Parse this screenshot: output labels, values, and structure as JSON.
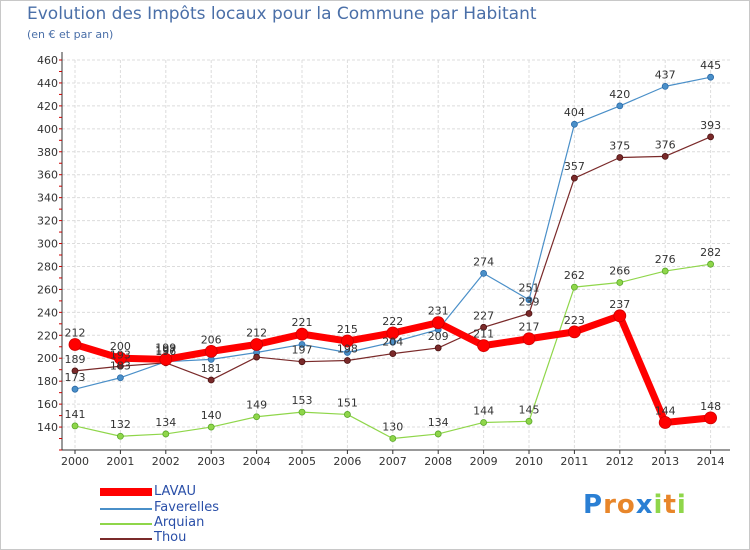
{
  "chart_data": {
    "type": "line",
    "title": "Evolution des Impôts locaux pour la Commune par Habitant",
    "subtitle": "(en € et par an)",
    "x": [
      "2000",
      "2001",
      "2002",
      "2003",
      "2004",
      "2005",
      "2006",
      "2007",
      "2008",
      "2009",
      "2010",
      "2011",
      "2012",
      "2013",
      "2014"
    ],
    "ylim": [
      120,
      460
    ],
    "yticks": [
      140,
      160,
      180,
      200,
      220,
      240,
      260,
      280,
      300,
      320,
      340,
      360,
      380,
      400,
      420,
      440,
      460
    ],
    "grid": true,
    "legend_position": "bottom-left",
    "series": [
      {
        "name": "LAVAU",
        "color": "#ff0000",
        "values": [
          212,
          200,
          199,
          206,
          212,
          221,
          215,
          222,
          231,
          211,
          217,
          223,
          237,
          144,
          148
        ]
      },
      {
        "name": "Faverelles",
        "color": "#4a8fc8",
        "values": [
          173,
          183,
          197,
          199,
          205,
          212,
          205,
          214,
          225,
          274,
          251,
          404,
          420,
          437,
          445
        ],
        "labels": [
          173,
          183,
          197,
          null,
          null,
          null,
          null,
          null,
          null,
          274,
          251,
          404,
          420,
          437,
          445
        ]
      },
      {
        "name": "Arquian",
        "color": "#8fd64a",
        "values": [
          141,
          132,
          134,
          140,
          149,
          153,
          151,
          130,
          134,
          144,
          145,
          262,
          266,
          276,
          282
        ]
      },
      {
        "name": "Thou",
        "color": "#7a2a2a",
        "values": [
          189,
          193,
          196,
          181,
          201,
          197,
          198,
          204,
          209,
          227,
          239,
          357,
          375,
          376,
          393
        ],
        "labels": [
          189,
          193,
          196,
          181,
          null,
          197,
          198,
          204,
          209,
          227,
          239,
          357,
          375,
          376,
          393
        ]
      }
    ]
  },
  "legend": {
    "items": [
      {
        "name": "LAVAU",
        "color": "#ff0000"
      },
      {
        "name": "Faverelles",
        "color": "#4a8fc8"
      },
      {
        "name": "Arquian",
        "color": "#8fd64a"
      },
      {
        "name": "Thou",
        "color": "#7a2a2a"
      }
    ]
  },
  "logo": {
    "text": "Proxiti"
  }
}
